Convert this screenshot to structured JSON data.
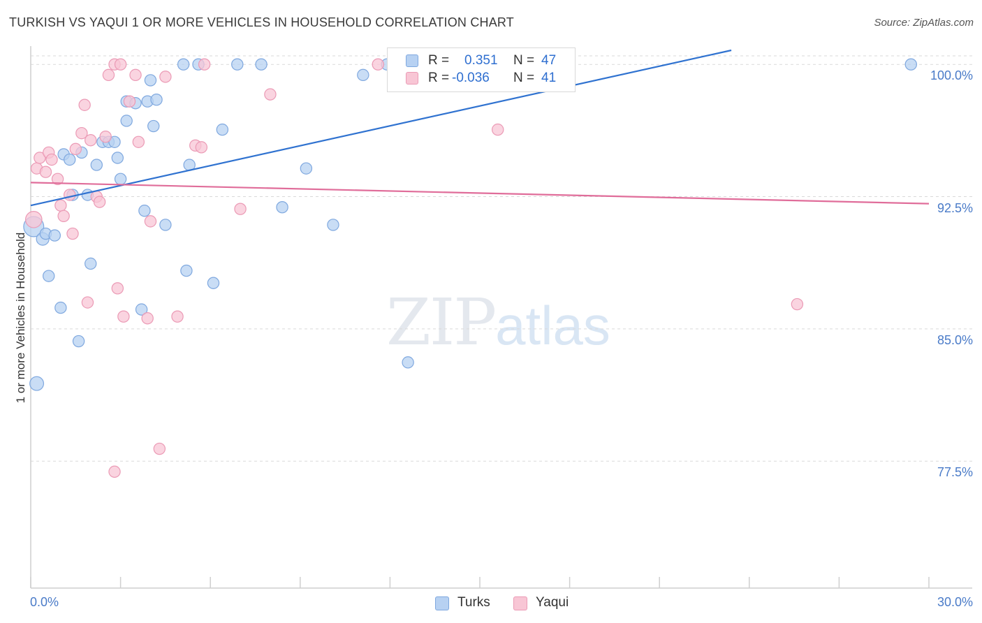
{
  "title": "TURKISH VS YAQUI 1 OR MORE VEHICLES IN HOUSEHOLD CORRELATION CHART",
  "source": "Source: ZipAtlas.com",
  "watermark": {
    "zip": "ZIP",
    "atlas": "atlas"
  },
  "legend": {
    "r_label": "R =",
    "n_label": "N =",
    "rows": [
      {
        "r": "0.351",
        "n": "47",
        "color": "#a9c8ef",
        "stroke": "#6f9fdc"
      },
      {
        "r": "-0.036",
        "n": "41",
        "color": "#f7bcd0",
        "stroke": "#e890ae"
      }
    ]
  },
  "bottom_legend": [
    "Turks",
    "Yaqui"
  ],
  "colors": {
    "turks_fill": "#b7d1f2",
    "turks_stroke": "#7fa8df",
    "yaqui_fill": "#f8c6d5",
    "yaqui_stroke": "#eb9ab5",
    "turks_line": "#2f72d0",
    "yaqui_line": "#e06d9a",
    "tick_text": "#4a7bc8"
  },
  "chart_data": {
    "type": "scatter",
    "title": "TURKISH VS YAQUI 1 OR MORE VEHICLES IN HOUSEHOLD CORRELATION CHART",
    "xlabel": "",
    "ylabel": "1 or more Vehicles in Household",
    "xlim": [
      0,
      30
    ],
    "ylim": [
      70.3,
      100.8
    ],
    "x_tick_labels": [
      "0.0%",
      "30.0%"
    ],
    "y_ticks": [
      77.5,
      85.0,
      92.5,
      100.0
    ],
    "y_tick_labels": [
      "77.5%",
      "85.0%",
      "92.5%",
      "100.0%"
    ],
    "grid": "horizontal dashed",
    "legend_position": "top-center",
    "series": [
      {
        "name": "Turks",
        "r": 0.351,
        "n": 47,
        "trend": [
          [
            0,
            92.0
          ],
          [
            23.4,
            100.8
          ]
        ],
        "points": [
          [
            0.1,
            90.8,
            1.6
          ],
          [
            0.2,
            81.9,
            1.1
          ],
          [
            0.4,
            90.1,
            1.0
          ],
          [
            0.5,
            90.4,
            0.9
          ],
          [
            0.6,
            88.0,
            0.9
          ],
          [
            0.8,
            90.3,
            0.9
          ],
          [
            1.0,
            86.2,
            0.9
          ],
          [
            1.1,
            94.9,
            0.9
          ],
          [
            1.3,
            94.6,
            0.9
          ],
          [
            1.4,
            92.6,
            0.9
          ],
          [
            1.6,
            84.3,
            0.9
          ],
          [
            1.7,
            95.0,
            0.9
          ],
          [
            1.9,
            92.6,
            0.9
          ],
          [
            2.0,
            88.7,
            0.9
          ],
          [
            2.2,
            94.3,
            0.9
          ],
          [
            2.4,
            95.6,
            0.9
          ],
          [
            2.6,
            95.6,
            0.9
          ],
          [
            2.8,
            95.6,
            0.9
          ],
          [
            2.9,
            94.7,
            0.9
          ],
          [
            3.0,
            93.5,
            0.9
          ],
          [
            3.2,
            96.8,
            0.9
          ],
          [
            3.2,
            97.9,
            0.9
          ],
          [
            3.5,
            97.8,
            0.9
          ],
          [
            3.7,
            86.1,
            0.9
          ],
          [
            3.8,
            91.7,
            0.9
          ],
          [
            3.9,
            97.9,
            0.9
          ],
          [
            4.0,
            99.1,
            0.9
          ],
          [
            4.1,
            96.5,
            0.9
          ],
          [
            4.2,
            98.0,
            0.9
          ],
          [
            4.5,
            90.9,
            0.9
          ],
          [
            5.1,
            100.0,
            0.9
          ],
          [
            5.2,
            88.3,
            0.9
          ],
          [
            5.3,
            94.3,
            0.9
          ],
          [
            5.6,
            100.0,
            0.9
          ],
          [
            6.1,
            87.6,
            0.9
          ],
          [
            6.4,
            96.3,
            0.9
          ],
          [
            6.9,
            100.0,
            0.9
          ],
          [
            7.7,
            100.0,
            0.9
          ],
          [
            8.4,
            91.9,
            0.9
          ],
          [
            9.2,
            94.1,
            0.9
          ],
          [
            10.1,
            90.9,
            0.9
          ],
          [
            11.1,
            99.4,
            0.9
          ],
          [
            11.9,
            100.0,
            0.9
          ],
          [
            12.3,
            100.0,
            0.9
          ],
          [
            12.6,
            83.1,
            0.9
          ],
          [
            29.4,
            100.0,
            0.9
          ]
        ]
      },
      {
        "name": "Yaqui",
        "r": -0.036,
        "n": 41,
        "trend": [
          [
            0,
            93.3
          ],
          [
            30,
            92.1
          ]
        ],
        "points": [
          [
            0.1,
            91.2,
            1.3
          ],
          [
            0.2,
            94.1,
            0.9
          ],
          [
            0.3,
            94.7,
            0.9
          ],
          [
            0.5,
            93.9,
            0.9
          ],
          [
            0.6,
            95.0,
            0.9
          ],
          [
            0.7,
            94.6,
            0.9
          ],
          [
            0.9,
            93.5,
            0.9
          ],
          [
            1.0,
            92.0,
            0.9
          ],
          [
            1.1,
            91.4,
            0.9
          ],
          [
            1.3,
            92.6,
            0.9
          ],
          [
            1.4,
            90.4,
            0.9
          ],
          [
            1.5,
            95.2,
            0.9
          ],
          [
            1.7,
            96.1,
            0.9
          ],
          [
            1.8,
            97.7,
            0.9
          ],
          [
            1.9,
            86.5,
            0.9
          ],
          [
            2.0,
            95.7,
            0.9
          ],
          [
            2.2,
            92.5,
            0.9
          ],
          [
            2.3,
            92.2,
            0.9
          ],
          [
            2.5,
            95.9,
            0.9
          ],
          [
            2.6,
            99.4,
            0.9
          ],
          [
            2.8,
            76.9,
            0.9
          ],
          [
            2.8,
            100.0,
            0.9
          ],
          [
            2.9,
            87.3,
            0.9
          ],
          [
            3.0,
            100.0,
            0.9
          ],
          [
            3.1,
            85.7,
            0.9
          ],
          [
            3.3,
            97.9,
            0.9
          ],
          [
            3.5,
            99.4,
            0.9
          ],
          [
            3.6,
            95.6,
            0.9
          ],
          [
            3.9,
            85.6,
            0.9
          ],
          [
            4.0,
            91.1,
            0.9
          ],
          [
            4.3,
            78.2,
            0.9
          ],
          [
            4.5,
            99.3,
            0.9
          ],
          [
            4.9,
            85.7,
            0.9
          ],
          [
            5.5,
            95.4,
            0.9
          ],
          [
            5.7,
            95.3,
            0.9
          ],
          [
            5.8,
            100.0,
            0.9
          ],
          [
            7.0,
            91.8,
            0.9
          ],
          [
            8.0,
            98.3,
            0.9
          ],
          [
            11.6,
            100.0,
            0.9
          ],
          [
            15.6,
            96.3,
            0.9
          ],
          [
            25.6,
            86.4,
            0.9
          ]
        ]
      }
    ]
  }
}
